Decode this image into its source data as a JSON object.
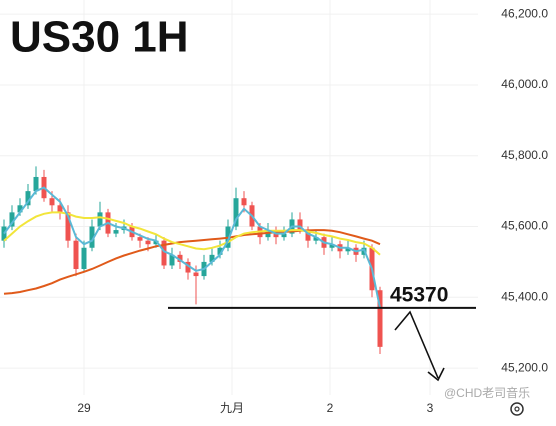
{
  "chart_data": {
    "type": "candlestick",
    "title": "US30 1H",
    "ylim": [
      45124,
      46240
    ],
    "yticks": [
      {
        "value": 45200,
        "label": "45,200.0"
      },
      {
        "value": 45400,
        "label": "45,400.0"
      },
      {
        "value": 45600,
        "label": "45,600.0"
      },
      {
        "value": 45800,
        "label": "45,800.0"
      },
      {
        "value": 46000,
        "label": "46,000.0"
      },
      {
        "value": 46200,
        "label": "46,200.0"
      }
    ],
    "xlim": [
      -0.5,
      59.25
    ],
    "xticks": [
      {
        "value": 10,
        "label": "29"
      },
      {
        "value": 28.5,
        "label": "九月"
      },
      {
        "value": 40.75,
        "label": "2"
      },
      {
        "value": 53.25,
        "label": "3"
      }
    ],
    "grid": true,
    "up_color": "#26a69a",
    "down_color": "#ef5350",
    "open": [
      45560,
      45600,
      45640,
      45660,
      45700,
      45740,
      45680,
      45660,
      45640,
      45560,
      45480,
      45540,
      45600,
      45640,
      45580,
      45590,
      45600,
      45570,
      45560,
      45550,
      45560,
      45490,
      45520,
      45500,
      45470,
      45460,
      45500,
      45520,
      45540,
      45600,
      45680,
      45660,
      45600,
      45570,
      45590,
      45570,
      45580,
      45620,
      45590,
      45560,
      45570,
      45540,
      45550,
      45530,
      45540,
      45520,
      45540,
      45420
    ],
    "high": [
      45620,
      45660,
      45680,
      45720,
      45770,
      45760,
      45700,
      45680,
      45660,
      45580,
      45560,
      45620,
      45670,
      45650,
      45610,
      45620,
      45610,
      45580,
      45570,
      45580,
      45570,
      45540,
      45530,
      45510,
      45490,
      45520,
      45540,
      45560,
      45620,
      45710,
      45700,
      45670,
      45610,
      45610,
      45600,
      45600,
      45640,
      45640,
      45600,
      45590,
      45580,
      45570,
      45560,
      45560,
      45550,
      45560,
      45550,
      45430
    ],
    "low": [
      45540,
      45590,
      45630,
      45650,
      45690,
      45670,
      45640,
      45620,
      45540,
      45460,
      45470,
      45530,
      45590,
      45570,
      45570,
      45580,
      45560,
      45540,
      45530,
      45540,
      45480,
      45480,
      45480,
      45450,
      45380,
      45450,
      45490,
      45510,
      45530,
      45590,
      45640,
      45590,
      45550,
      45560,
      45550,
      45560,
      45570,
      45580,
      45540,
      45550,
      45520,
      45530,
      45510,
      45520,
      45500,
      45510,
      45400,
      45240
    ],
    "close": [
      45600,
      45640,
      45660,
      45700,
      45740,
      45680,
      45660,
      45640,
      45560,
      45480,
      45540,
      45600,
      45640,
      45580,
      45590,
      45600,
      45570,
      45560,
      45550,
      45560,
      45490,
      45520,
      45500,
      45470,
      45460,
      45500,
      45520,
      45540,
      45600,
      45680,
      45660,
      45600,
      45570,
      45590,
      45570,
      45580,
      45620,
      45590,
      45560,
      45570,
      45540,
      45550,
      45530,
      45540,
      45520,
      45540,
      45420,
      45260
    ],
    "lines": [
      {
        "color": "#e05a1a",
        "values": [
          45410,
          45412,
          45415,
          45420,
          45425,
          45432,
          45440,
          45450,
          45458,
          45465,
          45472,
          45480,
          45490,
          45500,
          45510,
          45518,
          45525,
          45532,
          45538,
          45544,
          45548,
          45552,
          45556,
          45558,
          45560,
          45562,
          45564,
          45566,
          45568,
          45572,
          45576,
          45578,
          45580,
          45582,
          45584,
          45585,
          45586,
          45588,
          45589,
          45590,
          45590,
          45588,
          45584,
          45578,
          45572,
          45566,
          45560,
          45550
        ]
      },
      {
        "color": "#f2e53a",
        "values": [
          45560,
          45580,
          45600,
          45615,
          45628,
          45636,
          45640,
          45640,
          45636,
          45628,
          45624,
          45624,
          45626,
          45622,
          45616,
          45610,
          45600,
          45594,
          45586,
          45578,
          45566,
          45556,
          45550,
          45544,
          45538,
          45536,
          45540,
          45546,
          45556,
          45570,
          45580,
          45584,
          45586,
          45588,
          45588,
          45588,
          45590,
          45590,
          45586,
          45582,
          45576,
          45572,
          45566,
          45562,
          45556,
          45552,
          45540,
          45520
        ]
      },
      {
        "color": "#5ab9d6",
        "values": [
          45580,
          45610,
          45640,
          45670,
          45700,
          45710,
          45690,
          45670,
          45630,
          45570,
          45550,
          45560,
          45600,
          45610,
          45600,
          45595,
          45585,
          45575,
          45565,
          45560,
          45530,
          45520,
          45505,
          45490,
          45475,
          45480,
          45500,
          45520,
          45560,
          45620,
          45650,
          45630,
          45600,
          45590,
          45580,
          45580,
          45600,
          45600,
          45580,
          45570,
          45555,
          45550,
          45540,
          45540,
          45530,
          45535,
          45480,
          45370
        ]
      }
    ],
    "level": 45370,
    "watermark": "@CHD老司音乐"
  }
}
